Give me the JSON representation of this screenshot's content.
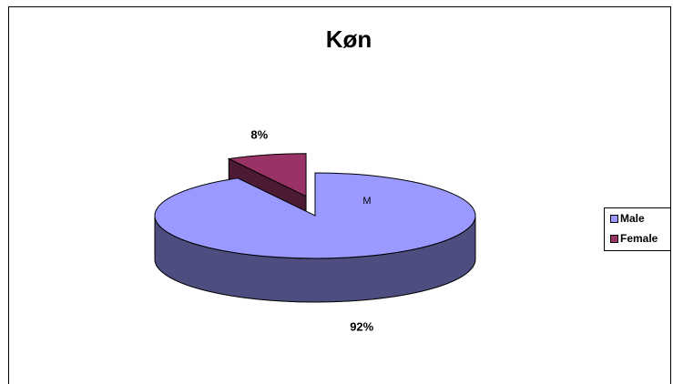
{
  "chart_data": {
    "type": "pie",
    "title": "Køn",
    "annotation": "M",
    "categories": [
      "Male",
      "Female"
    ],
    "values": [
      92,
      8
    ],
    "value_labels": [
      "92%",
      "8%"
    ],
    "colors": [
      "#9999ff",
      "#993366"
    ],
    "explode": [
      false,
      true
    ],
    "legend": "right",
    "three_d": true
  }
}
